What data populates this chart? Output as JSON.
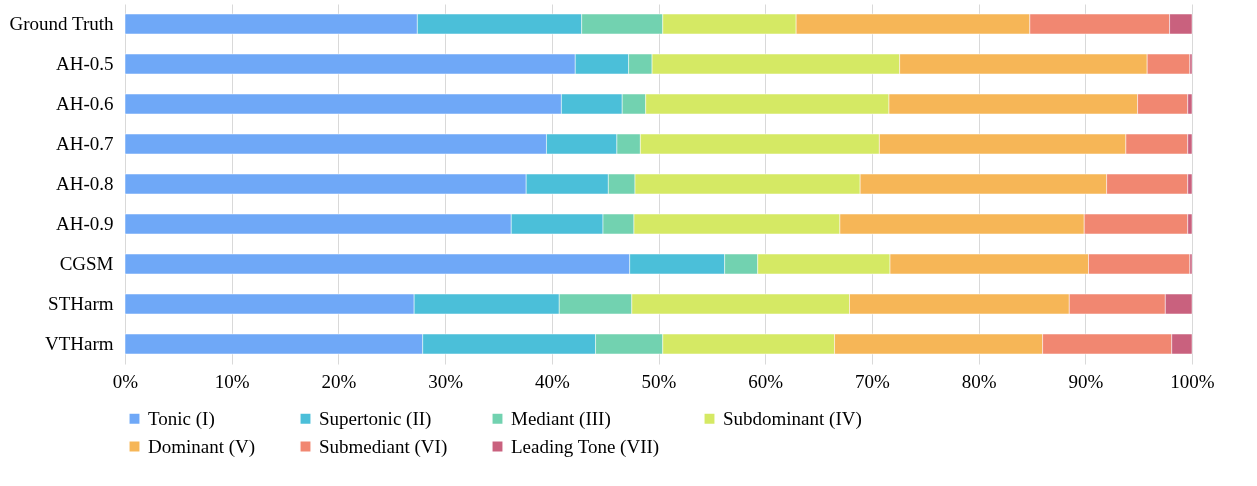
{
  "chart_data": {
    "type": "bar",
    "orientation": "horizontal",
    "stacked": true,
    "categories": [
      "Ground Truth",
      "AH-0.5",
      "AH-0.6",
      "AH-0.7",
      "AH-0.8",
      "AH-0.9",
      "CGSM",
      "STHarm",
      "VTHarm"
    ],
    "series": [
      {
        "name": "Tonic (I)",
        "color": "#6fa8f7",
        "values": [
          27.4,
          42.2,
          40.9,
          39.5,
          37.6,
          36.2,
          47.3,
          27.1,
          27.9
        ]
      },
      {
        "name": "Supertonic (II)",
        "color": "#4bbfd9",
        "values": [
          15.4,
          5.0,
          5.7,
          6.6,
          7.7,
          8.6,
          8.9,
          13.6,
          16.2
        ]
      },
      {
        "name": "Mediant (III)",
        "color": "#72d2b0",
        "values": [
          7.6,
          2.2,
          2.2,
          2.2,
          2.5,
          2.9,
          3.1,
          6.8,
          6.3
        ]
      },
      {
        "name": "Subdominant (IV)",
        "color": "#d5e964",
        "values": [
          12.5,
          23.2,
          22.8,
          22.4,
          21.1,
          19.3,
          12.4,
          20.4,
          16.1
        ]
      },
      {
        "name": "Dominant (V)",
        "color": "#f6b657",
        "values": [
          21.9,
          23.2,
          23.3,
          23.1,
          23.1,
          22.9,
          18.6,
          20.6,
          19.5
        ]
      },
      {
        "name": "Submediant (VI)",
        "color": "#f18771",
        "values": [
          13.1,
          4.0,
          4.7,
          5.8,
          7.6,
          9.7,
          9.5,
          9.0,
          12.1
        ]
      },
      {
        "name": "Leading Tone (VII)",
        "color": "#c9617e",
        "values": [
          2.1,
          0.2,
          0.4,
          0.4,
          0.4,
          0.4,
          0.2,
          2.5,
          1.9
        ]
      }
    ],
    "xlim": [
      0,
      100
    ],
    "xticks": [
      {
        "value": 0,
        "label": "0%"
      },
      {
        "value": 10,
        "label": "10%"
      },
      {
        "value": 20,
        "label": "20%"
      },
      {
        "value": 30,
        "label": "30%"
      },
      {
        "value": 40,
        "label": "40%"
      },
      {
        "value": 50,
        "label": "50%"
      },
      {
        "value": 60,
        "label": "60%"
      },
      {
        "value": 70,
        "label": "70%"
      },
      {
        "value": 80,
        "label": "80%"
      },
      {
        "value": 90,
        "label": "90%"
      },
      {
        "value": 100,
        "label": "100%"
      }
    ],
    "grid": "x",
    "legend": "bottom"
  }
}
